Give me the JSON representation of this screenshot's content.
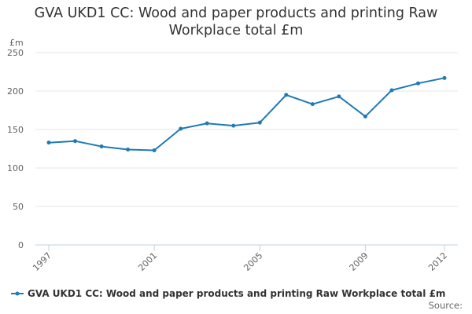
{
  "chart_data": {
    "type": "line",
    "title": "GVA UKD1 CC: Wood and paper products and printing Raw Workplace total £m",
    "title_lines": [
      "GVA UKD1 CC: Wood and paper products and printing Raw",
      "Workplace total £m"
    ],
    "ylabel": "£m",
    "xlabel": "",
    "x": [
      1997,
      1998,
      1999,
      2000,
      2001,
      2002,
      2003,
      2004,
      2005,
      2006,
      2007,
      2008,
      2009,
      2010,
      2011,
      2012
    ],
    "x_tick_labels": [
      "1997",
      "2001",
      "2005",
      "2009",
      "2012"
    ],
    "y_tick_labels": [
      "0",
      "50",
      "100",
      "150",
      "200",
      "250"
    ],
    "ylim": [
      0,
      250
    ],
    "grid": true,
    "legend_position": "bottom-left",
    "series": [
      {
        "name": "GVA UKD1 CC: Wood and paper products and printing Raw Workplace total £m",
        "color": "#1f7ab5",
        "values": [
          133,
          135,
          128,
          124,
          123,
          151,
          158,
          155,
          159,
          195,
          183,
          193,
          167,
          201,
          210,
          217
        ]
      }
    ]
  },
  "source_label": "Source:"
}
